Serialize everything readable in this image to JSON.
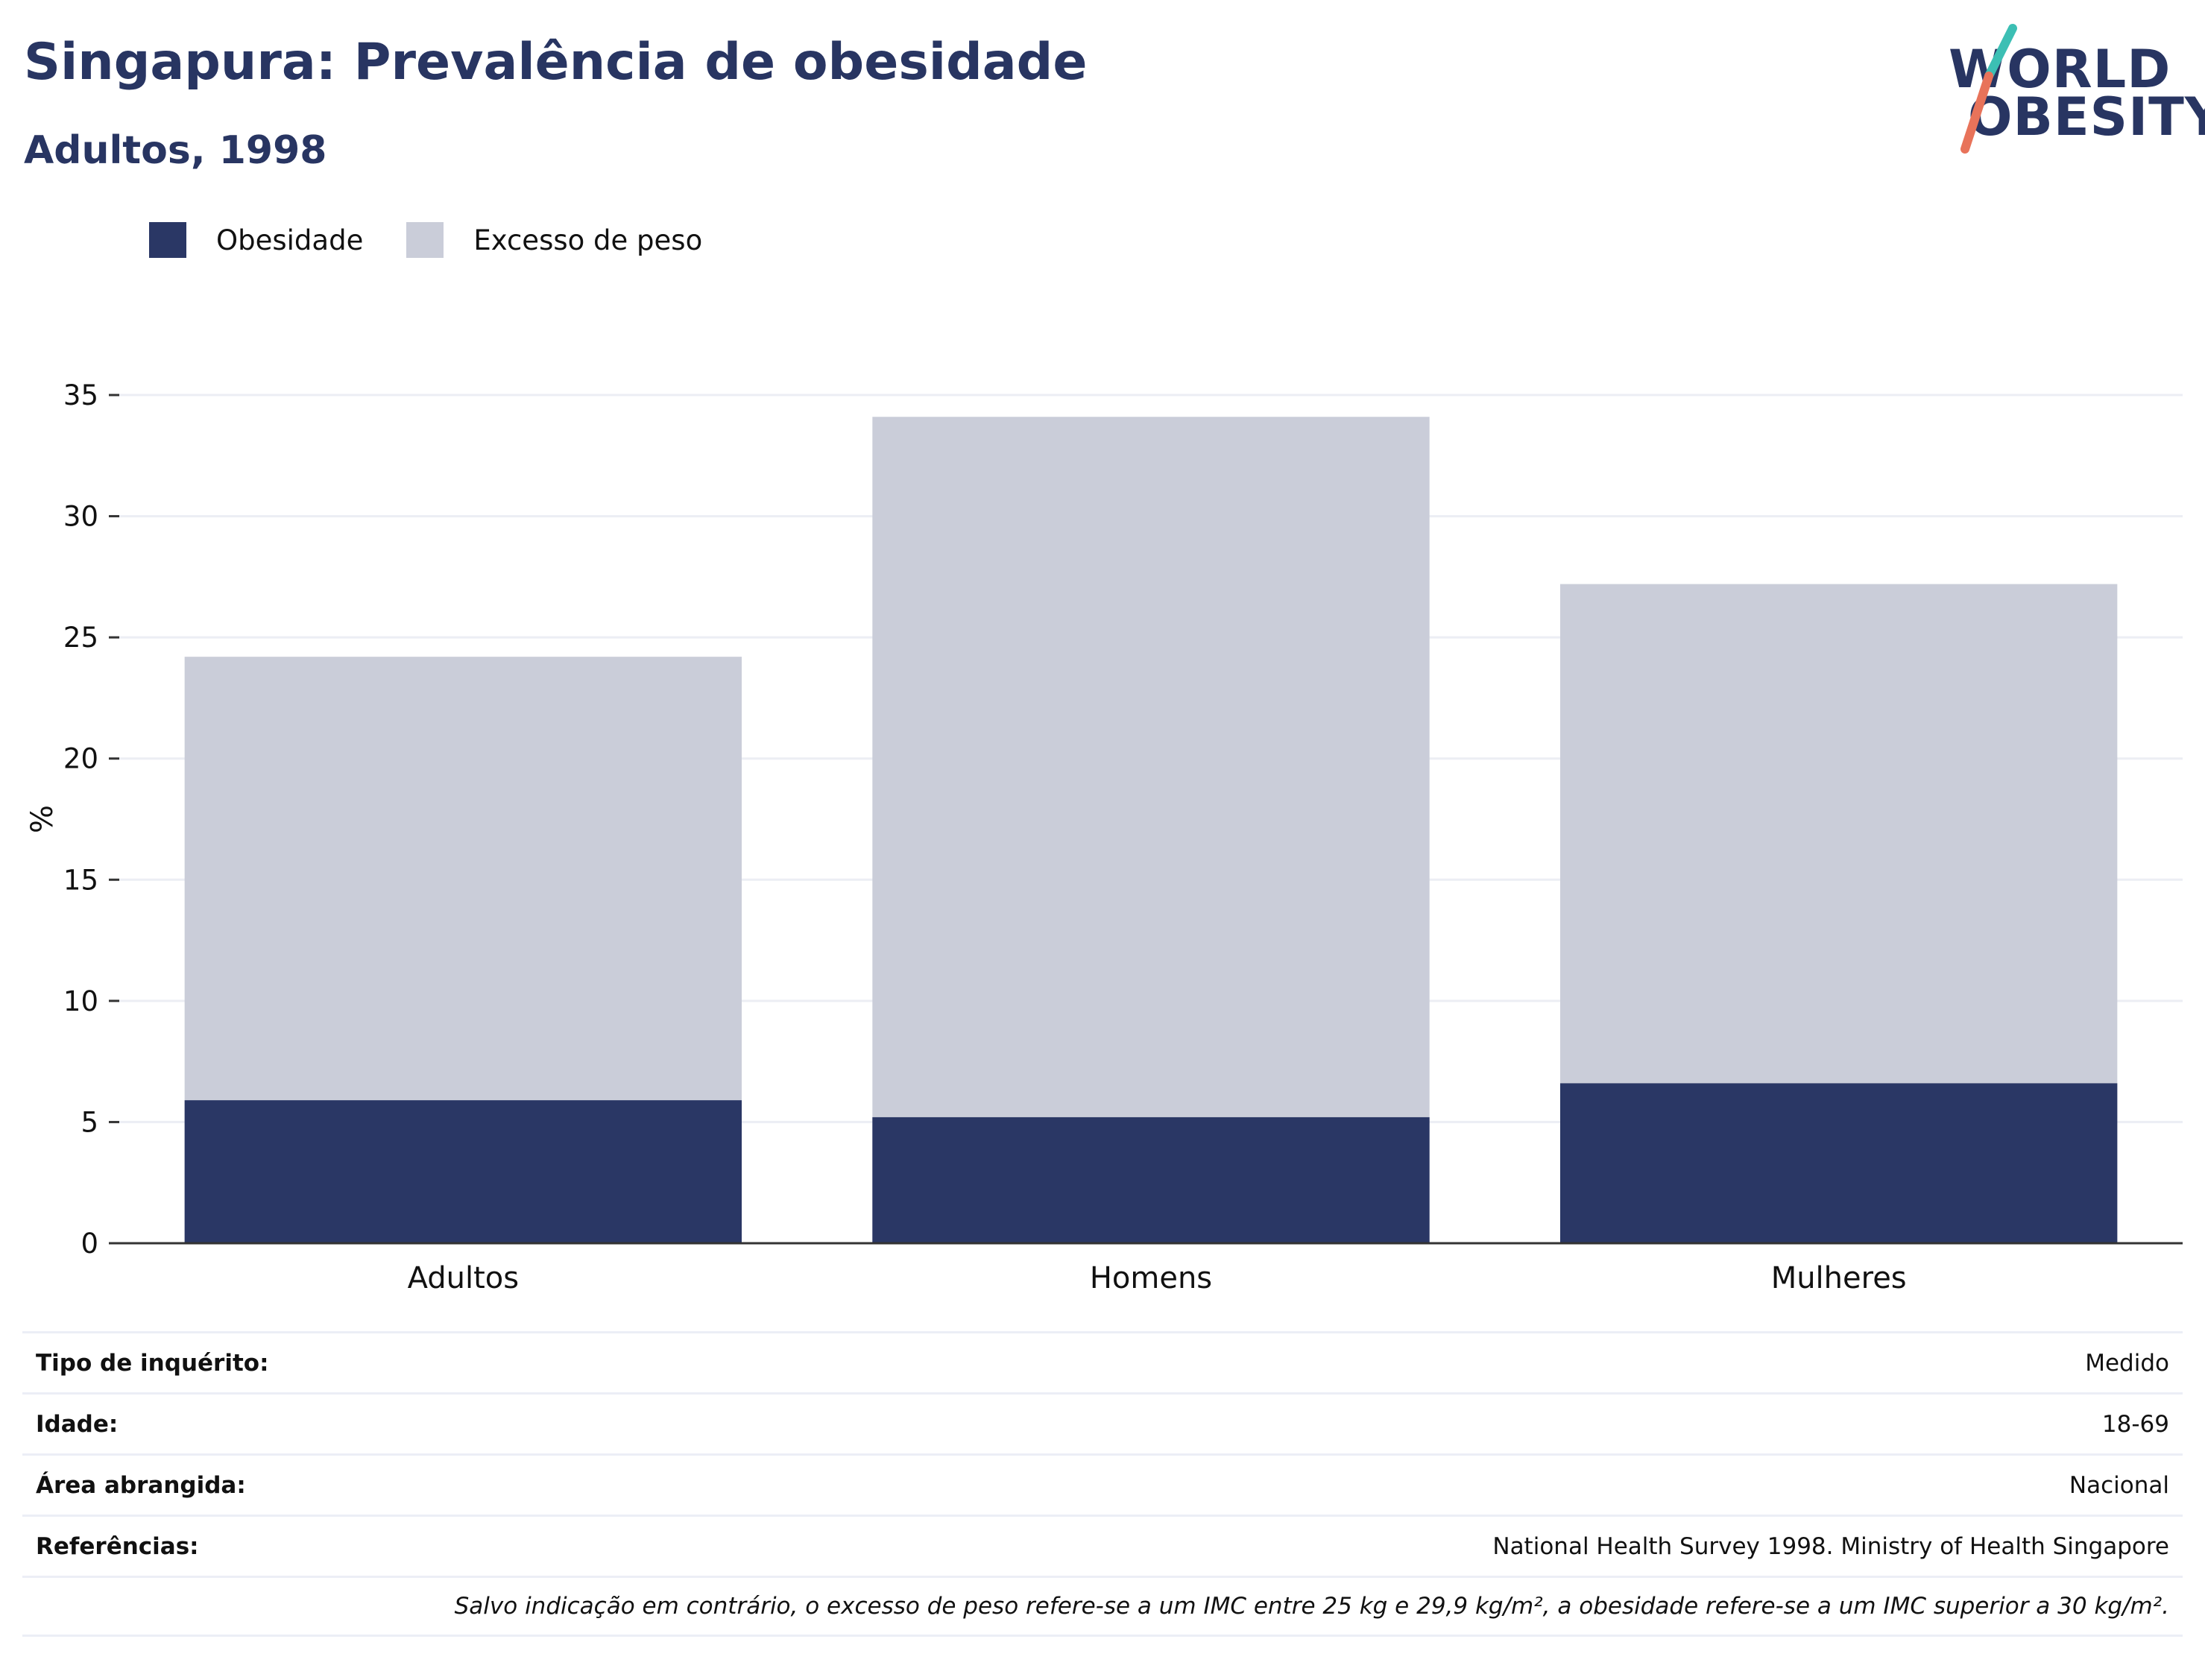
{
  "header": {
    "title": "Singapura: Prevalência de obesidade",
    "subtitle": "Adultos, 1998"
  },
  "logo": {
    "line1": "WORLD",
    "line2": "OBESITY",
    "accent_teal": "#3cbfb4",
    "accent_coral": "#e8735a"
  },
  "colors": {
    "obesity": "#2a3765",
    "overweight": "#cacdd9",
    "grid": "#eceef4",
    "axis": "#333333",
    "title": "#283562"
  },
  "chart_data": {
    "type": "bar",
    "stacked": "overlay",
    "categories": [
      "Adultos",
      "Homens",
      "Mulheres"
    ],
    "series": [
      {
        "name": "Obesidade",
        "values": [
          5.9,
          5.2,
          6.6
        ]
      },
      {
        "name": "Excesso de peso",
        "values": [
          24.2,
          34.1,
          27.2
        ]
      }
    ],
    "ylabel": "%",
    "ylim": [
      0,
      35
    ],
    "yticks": [
      0,
      5,
      10,
      15,
      20,
      25,
      30,
      35
    ],
    "grid": true,
    "legend_position": "top-left"
  },
  "info": {
    "rows": [
      {
        "label": "Tipo de inquérito:",
        "value": "Medido"
      },
      {
        "label": "Idade:",
        "value": "18-69"
      },
      {
        "label": "Área abrangida:",
        "value": "Nacional"
      },
      {
        "label": "Referências:",
        "value": "National Health Survey 1998. Ministry of Health Singapore"
      }
    ],
    "note": "Salvo indicação em contrário, o excesso de peso refere-se a um IMC entre 25 kg e 29,9 kg/m², a obesidade refere-se a um IMC superior a 30 kg/m²."
  }
}
